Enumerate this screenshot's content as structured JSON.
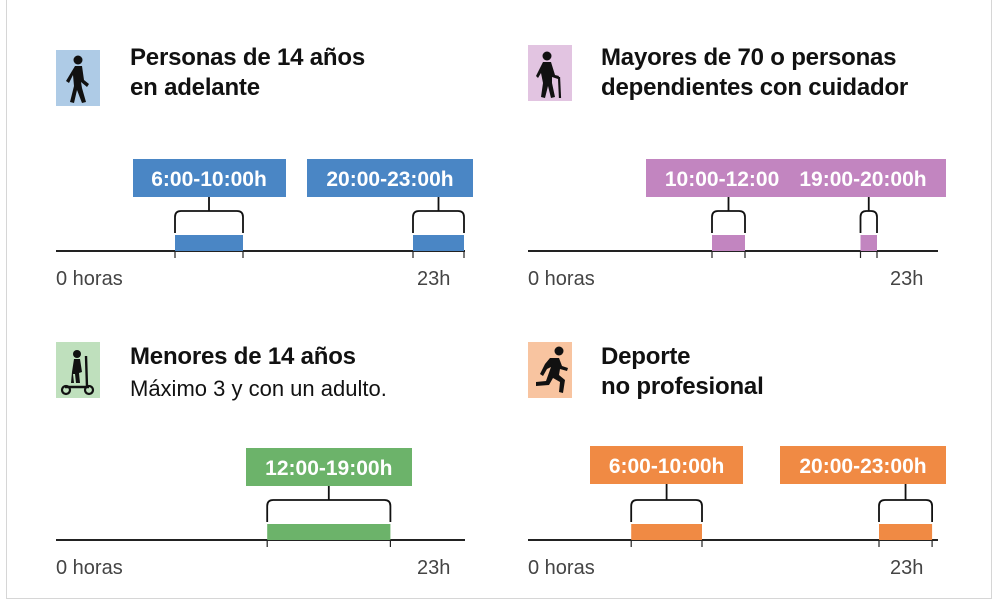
{
  "panels": [
    {
      "title_lines": [
        "Personas de 14 años",
        "en adelante"
      ],
      "subtitle": "",
      "icon": "walking-person-icon",
      "color": "#4a86c5",
      "icon_bg": "#aecbe6",
      "axis_start": "0 horas",
      "axis_end": "23h",
      "ranges": [
        {
          "label": "6:00-10:00h",
          "start": 6,
          "end": 10
        },
        {
          "label": "20:00-23:00h",
          "start": 20,
          "end": 23
        }
      ]
    },
    {
      "title_lines": [
        "Mayores de 70 o personas",
        "dependientes con cuidador"
      ],
      "subtitle": "",
      "icon": "elderly-person-cane-icon",
      "color": "#c285c0",
      "icon_bg": "#e2c4e1",
      "axis_start": "0 horas",
      "axis_end": "23h",
      "ranges": [
        {
          "label": "10:00-12:00h",
          "start": 10,
          "end": 12
        },
        {
          "label": "19:00-20:00h",
          "start": 19,
          "end": 20
        }
      ]
    },
    {
      "title_lines": [
        "Menores de 14 años"
      ],
      "subtitle": "Máximo 3 y con un adulto.",
      "icon": "child-scooter-icon",
      "color": "#6cb36a",
      "icon_bg": "#bfe0bd",
      "axis_start": "0 horas",
      "axis_end": "23h",
      "ranges": [
        {
          "label": "12:00-19:00h",
          "start": 12,
          "end": 19
        }
      ]
    },
    {
      "title_lines": [
        "Deporte",
        "no profesional"
      ],
      "subtitle": "",
      "icon": "running-person-icon",
      "color": "#f08a44",
      "icon_bg": "#f8c4a0",
      "axis_start": "0 horas",
      "axis_end": "23h",
      "ranges": [
        {
          "label": "6:00-10:00h",
          "start": 6,
          "end": 10
        },
        {
          "label": "20:00-23:00h",
          "start": 20,
          "end": 23
        }
      ]
    }
  ],
  "chart_data": [
    {
      "type": "bar",
      "title": "Personas de 14 años en adelante",
      "xlim": [
        0,
        23
      ],
      "x_unit": "horas",
      "series": [
        {
          "values": [
            [
              6,
              10
            ],
            [
              20,
              23
            ]
          ]
        }
      ]
    },
    {
      "type": "bar",
      "title": "Mayores de 70 o personas dependientes con cuidador",
      "xlim": [
        0,
        23
      ],
      "x_unit": "horas",
      "series": [
        {
          "values": [
            [
              10,
              12
            ],
            [
              19,
              20
            ]
          ]
        }
      ]
    },
    {
      "type": "bar",
      "title": "Menores de 14 años",
      "subtitle": "Máximo 3 y con un adulto.",
      "xlim": [
        0,
        23
      ],
      "x_unit": "horas",
      "series": [
        {
          "values": [
            [
              12,
              19
            ]
          ]
        }
      ]
    },
    {
      "type": "bar",
      "title": "Deporte no profesional",
      "xlim": [
        0,
        23
      ],
      "x_unit": "horas",
      "series": [
        {
          "values": [
            [
              6,
              10
            ],
            [
              20,
              23
            ]
          ]
        }
      ]
    }
  ]
}
